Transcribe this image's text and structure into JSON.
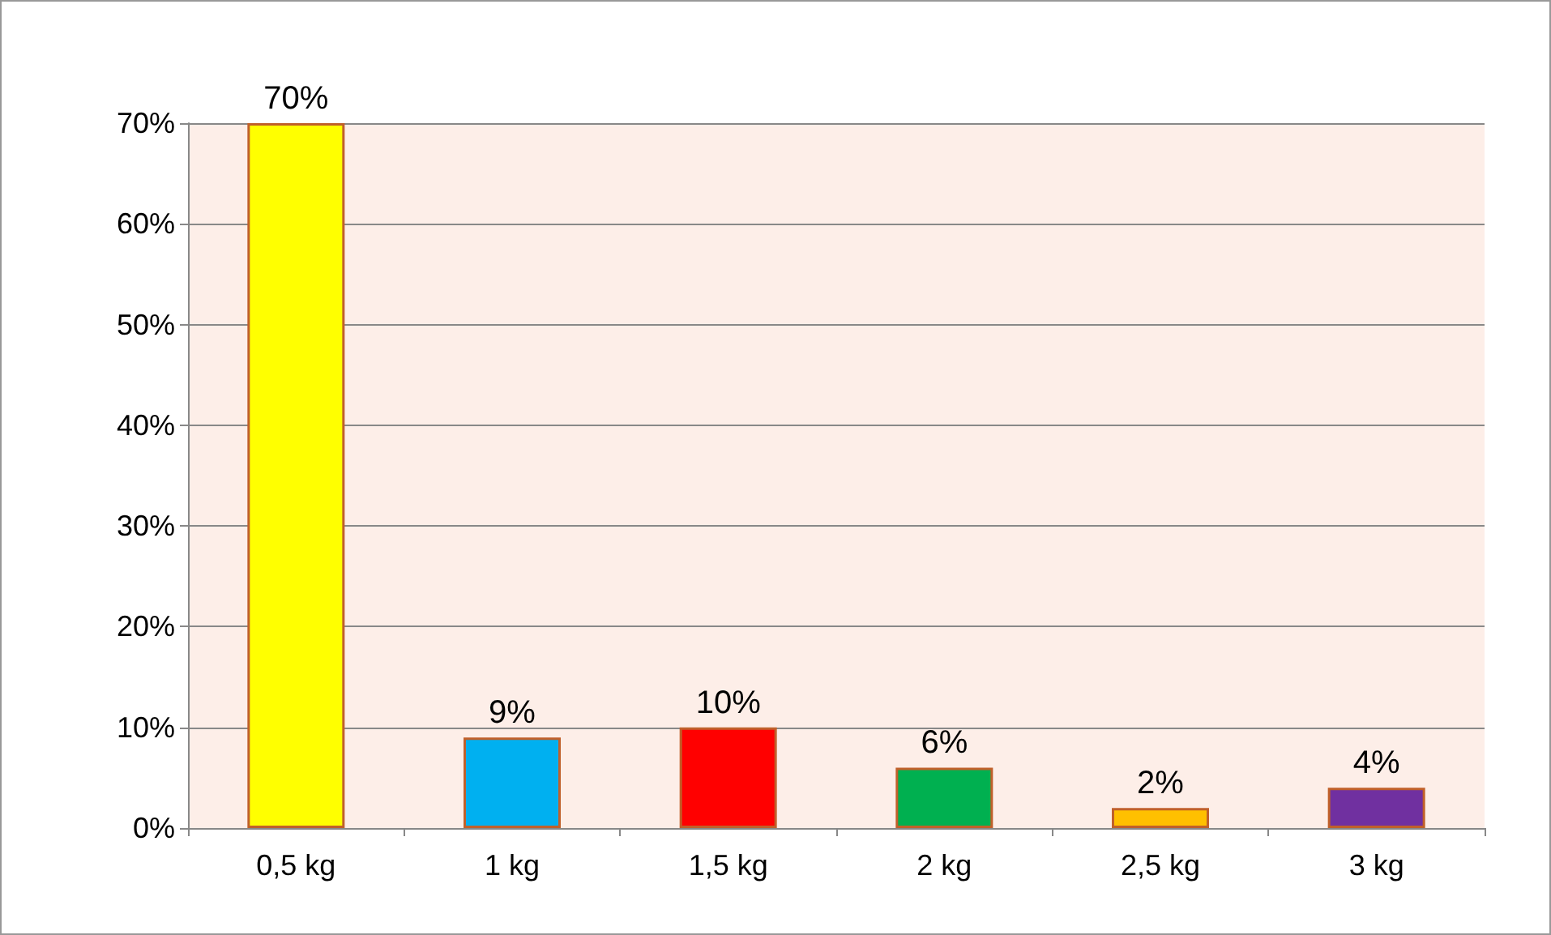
{
  "chart_data": {
    "type": "bar",
    "categories": [
      "0,5 kg",
      "1 kg",
      "1,5 kg",
      "2 kg",
      "2,5 kg",
      "3 kg"
    ],
    "values": [
      70,
      9,
      10,
      6,
      2,
      4
    ],
    "colors": [
      "#ffff00",
      "#00b0f0",
      "#ff0000",
      "#00b050",
      "#ffc000",
      "#7030a0"
    ],
    "value_labels": [
      "70%",
      "9%",
      "10%",
      "6%",
      "2%",
      "4%"
    ],
    "ylim": [
      0,
      70
    ],
    "yticks": [
      {
        "value": 0,
        "label": "0%"
      },
      {
        "value": 10,
        "label": "10%"
      },
      {
        "value": 20,
        "label": "20%"
      },
      {
        "value": 30,
        "label": "30%"
      },
      {
        "value": 40,
        "label": "40%"
      },
      {
        "value": 50,
        "label": "50%"
      },
      {
        "value": 60,
        "label": "60%"
      },
      {
        "value": 70,
        "label": "70%"
      }
    ],
    "grid": "y"
  }
}
